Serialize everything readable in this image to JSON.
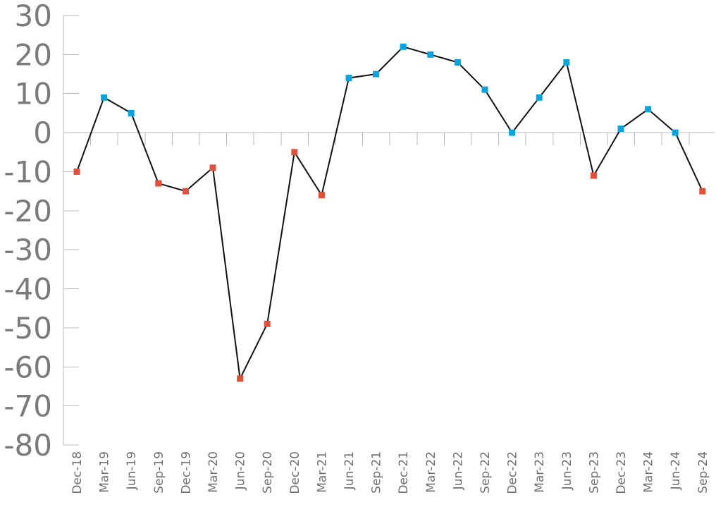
{
  "chart_data": {
    "type": "line",
    "title": "",
    "xlabel": "",
    "ylabel": "",
    "ylim": [
      -80,
      30
    ],
    "yticks": [
      30,
      20,
      10,
      0,
      -10,
      -20,
      -30,
      -40,
      -50,
      -60,
      -70,
      -80
    ],
    "legend": "none",
    "grid": false,
    "categories": [
      "Dec-18",
      "Mar-19",
      "Jun-19",
      "Sep-19",
      "Dec-19",
      "Mar-20",
      "Jun-20",
      "Sep-20",
      "Dec-20",
      "Mar-21",
      "Jun-21",
      "Sep-21",
      "Dec-21",
      "Mar-22",
      "Jun-22",
      "Sep-22",
      "Dec-22",
      "Mar-23",
      "Jun-23",
      "Sep-23",
      "Dec-23",
      "Mar-24",
      "Jun-24",
      "Sep-24"
    ],
    "series": [
      {
        "values": [
          -10,
          9,
          5,
          -13,
          -15,
          -9,
          -63,
          -49,
          -5,
          -16,
          14,
          15,
          22,
          20,
          18,
          11,
          0,
          9,
          18,
          -11,
          1,
          6,
          0,
          -15
        ]
      }
    ],
    "colors": {
      "positive_marker": "#0ba3de",
      "negative_marker": "#e0503b",
      "line": "#111111",
      "axis": "#b9b9b9",
      "tick_text": "#7a7a7a"
    }
  }
}
